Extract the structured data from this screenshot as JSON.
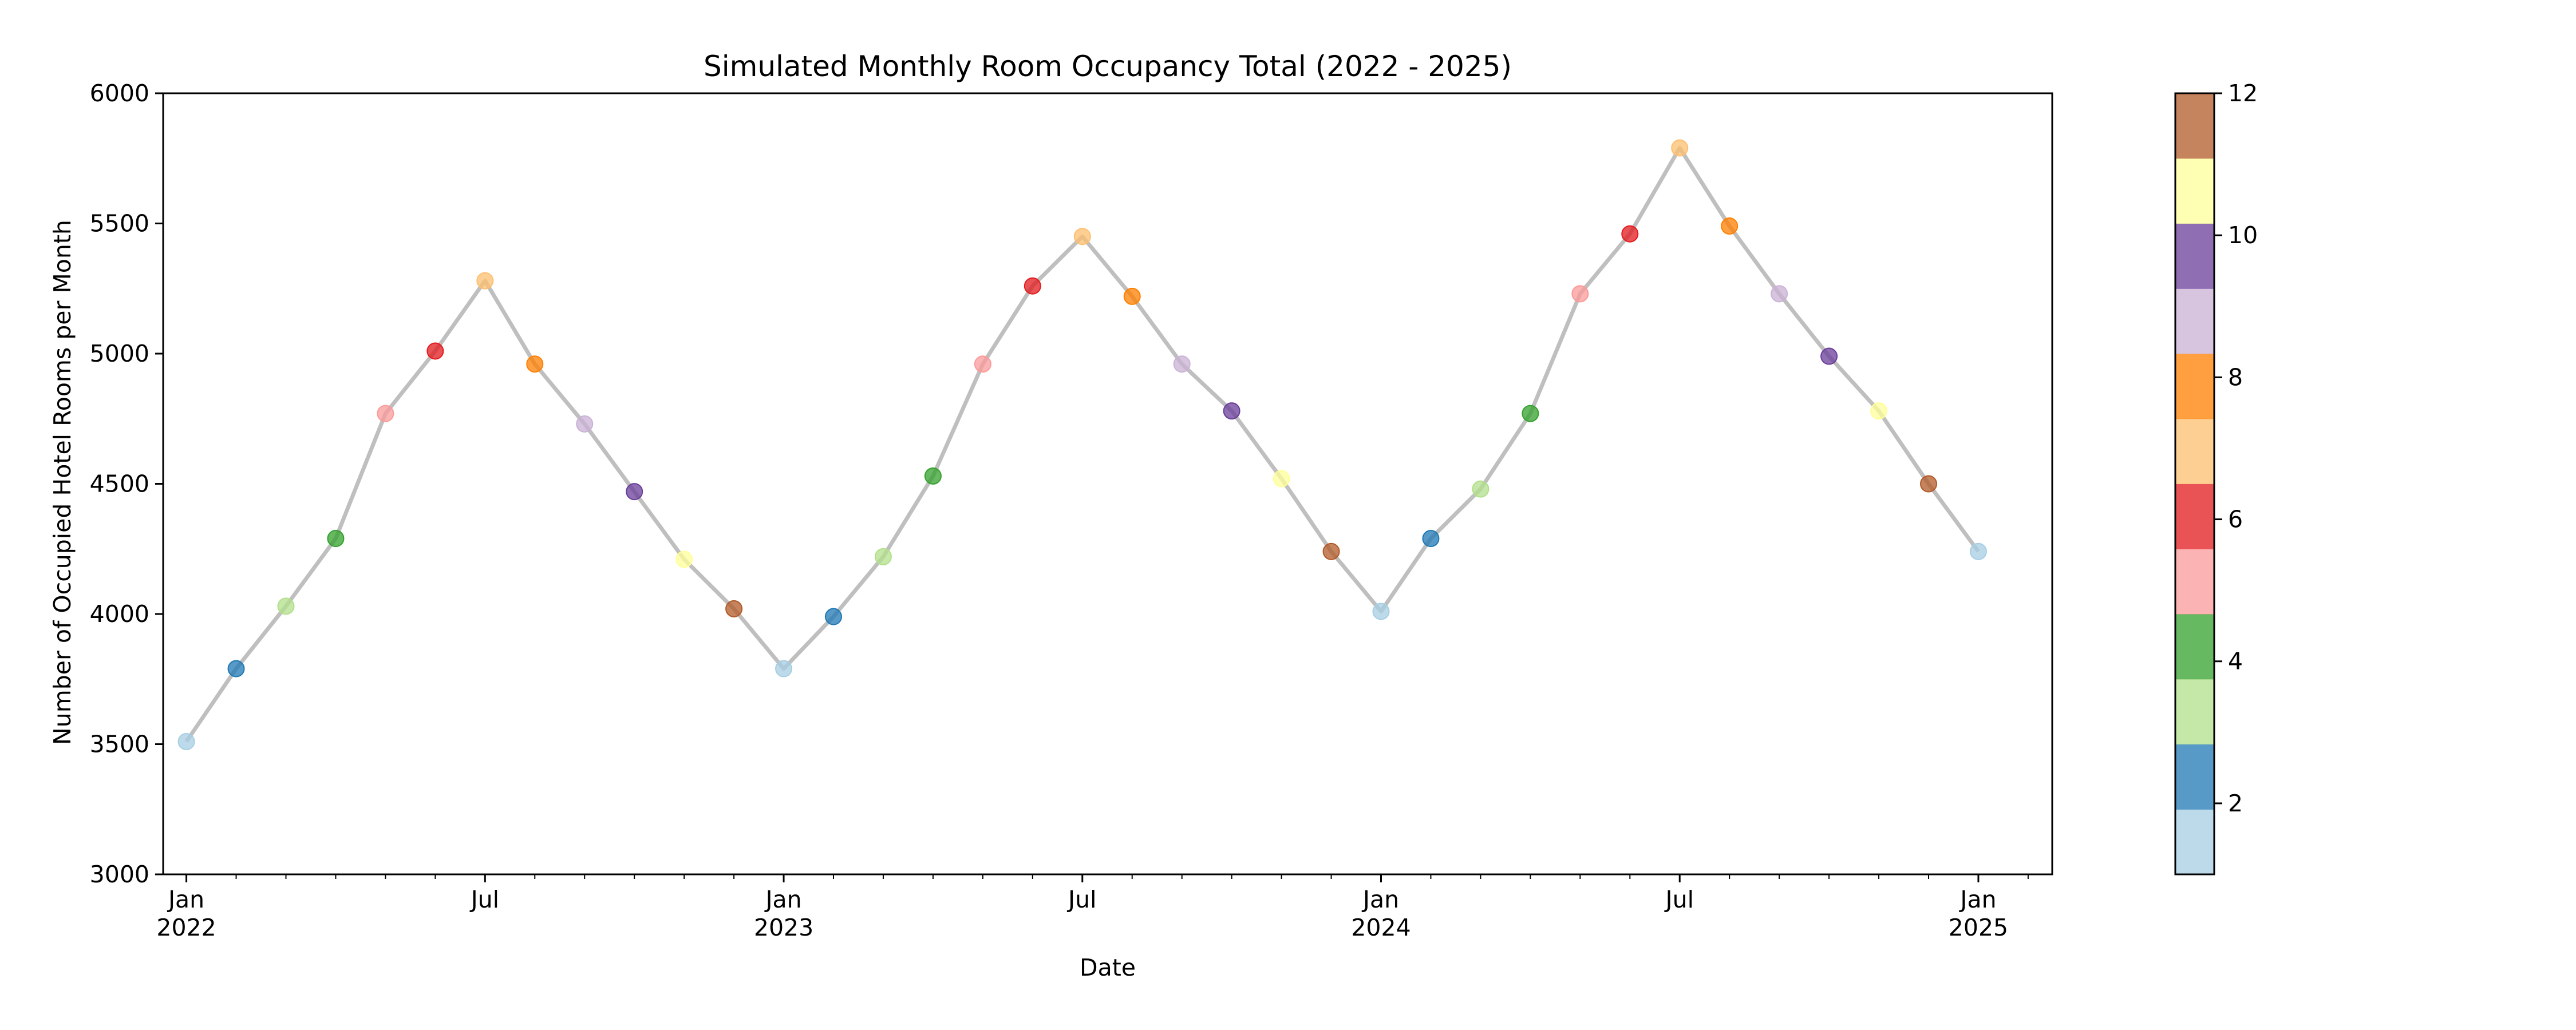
{
  "chart_data": {
    "type": "line",
    "title": "Simulated Monthly Room Occupancy Total (2022 - 2025)",
    "xlabel": "Date",
    "ylabel": "Number of Occupied Hotel Rooms per Month",
    "ylim": [
      3000,
      6000
    ],
    "xlim": [
      "2021-12-01",
      "2025-02-01"
    ],
    "yticks": [
      3000,
      3500,
      4000,
      4500,
      5000,
      5500,
      6000
    ],
    "xticks": [
      {
        "date": "2022-01",
        "label": "Jan",
        "sublabel": "2022"
      },
      {
        "date": "2022-07",
        "label": "Jul",
        "sublabel": ""
      },
      {
        "date": "2023-01",
        "label": "Jan",
        "sublabel": "2023"
      },
      {
        "date": "2023-07",
        "label": "Jul",
        "sublabel": ""
      },
      {
        "date": "2024-01",
        "label": "Jan",
        "sublabel": "2024"
      },
      {
        "date": "2024-07",
        "label": "Jul",
        "sublabel": ""
      },
      {
        "date": "2025-01",
        "label": "Jan",
        "sublabel": "2025"
      }
    ],
    "grid": false,
    "line_color": "#bfbfbf",
    "points": [
      {
        "date": "2022-01",
        "value": 3510
      },
      {
        "date": "2022-02",
        "value": 3790
      },
      {
        "date": "2022-03",
        "value": 4030
      },
      {
        "date": "2022-04",
        "value": 4290
      },
      {
        "date": "2022-05",
        "value": 4770
      },
      {
        "date": "2022-06",
        "value": 5010
      },
      {
        "date": "2022-07",
        "value": 5280
      },
      {
        "date": "2022-08",
        "value": 4960
      },
      {
        "date": "2022-09",
        "value": 4730
      },
      {
        "date": "2022-10",
        "value": 4470
      },
      {
        "date": "2022-11",
        "value": 4210
      },
      {
        "date": "2022-12",
        "value": 4020
      },
      {
        "date": "2023-01",
        "value": 3790
      },
      {
        "date": "2023-02",
        "value": 3990
      },
      {
        "date": "2023-03",
        "value": 4220
      },
      {
        "date": "2023-04",
        "value": 4530
      },
      {
        "date": "2023-05",
        "value": 4960
      },
      {
        "date": "2023-06",
        "value": 5260
      },
      {
        "date": "2023-07",
        "value": 5450
      },
      {
        "date": "2023-08",
        "value": 5220
      },
      {
        "date": "2023-09",
        "value": 4960
      },
      {
        "date": "2023-10",
        "value": 4780
      },
      {
        "date": "2023-11",
        "value": 4520
      },
      {
        "date": "2023-12",
        "value": 4240
      },
      {
        "date": "2024-01",
        "value": 4010
      },
      {
        "date": "2024-02",
        "value": 4290
      },
      {
        "date": "2024-03",
        "value": 4480
      },
      {
        "date": "2024-04",
        "value": 4770
      },
      {
        "date": "2024-05",
        "value": 5230
      },
      {
        "date": "2024-06",
        "value": 5460
      },
      {
        "date": "2024-07",
        "value": 5790
      },
      {
        "date": "2024-08",
        "value": 5490
      },
      {
        "date": "2024-09",
        "value": 5230
      },
      {
        "date": "2024-10",
        "value": 4990
      },
      {
        "date": "2024-11",
        "value": 4780
      },
      {
        "date": "2024-12",
        "value": 4500
      },
      {
        "date": "2025-01",
        "value": 4240
      }
    ],
    "colorbar": {
      "range": [
        1,
        12
      ],
      "tick_values": [
        2,
        4,
        6,
        8,
        10,
        12
      ],
      "colors": [
        "#a6cee3",
        "#1f78b4",
        "#b2df8a",
        "#33a02c",
        "#fb9a99",
        "#e31a1c",
        "#fdbf6f",
        "#ff7f00",
        "#cab2d6",
        "#6a3d9a",
        "#ffff99",
        "#b15928"
      ]
    }
  }
}
